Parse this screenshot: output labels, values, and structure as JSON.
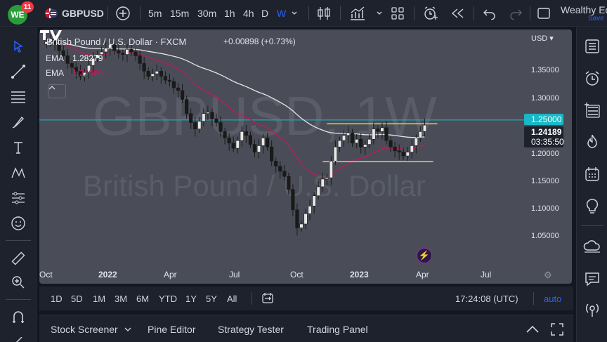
{
  "topbar": {
    "avatar_initials": "WE",
    "notifications": "11",
    "symbol": "GBPUSD",
    "intervals": [
      "5m",
      "15m",
      "30m",
      "1h",
      "4h",
      "D",
      "W"
    ],
    "active_interval": "W",
    "brand": "Wealthy Ed",
    "save": "Save"
  },
  "chart": {
    "legend_title": "British Pound / U.S. Dollar · FXCM",
    "legend_change": "+0.00898 (+0.73%)",
    "ema1_label": "EMA",
    "ema1_value": "1.28279",
    "ema2_label": "EMA",
    "ema2_value": "1.22080",
    "currency": "USD",
    "watermark_symbol": "GBPUSD, 1W",
    "watermark_name": "British Pound / U.S. Dollar",
    "price_ticks": [
      "1.35000",
      "1.30000",
      "1.20000",
      "1.15000",
      "1.10000",
      "1.05000"
    ],
    "badge_level": "1.25000",
    "badge_price": "1.24189",
    "badge_countdown": "03:35:50",
    "time_ticks": [
      "Oct",
      "2022",
      "Apr",
      "Jul",
      "Oct",
      "2023",
      "Apr",
      "Jul"
    ],
    "colors": {
      "bull": "#e8e8e8",
      "bear": "#1a1a1a",
      "ema_long": "#e6e6e6",
      "ema_short": "#c2185b",
      "support_resistance": "#e8e84a",
      "hline": "#18b8c8"
    }
  },
  "chart_data": {
    "type": "candlestick",
    "title": "British Pound / U.S. Dollar · FXCM",
    "timeframe": "1W",
    "ylim": [
      1.03,
      1.38
    ],
    "horizontal_line": 1.25,
    "resistance_level": 1.244,
    "support_level": 1.185,
    "last_price": 1.24189,
    "ema_long_last": 1.28279,
    "ema_short_last": 1.2208,
    "closes": [
      1.372,
      1.376,
      1.368,
      1.358,
      1.35,
      1.338,
      1.332,
      1.326,
      1.318,
      1.324,
      1.335,
      1.346,
      1.352,
      1.356,
      1.362,
      1.368,
      1.358,
      1.354,
      1.352,
      1.36,
      1.356,
      1.35,
      1.338,
      1.326,
      1.318,
      1.322,
      1.326,
      1.318,
      1.312,
      1.31,
      1.3,
      1.296,
      1.282,
      1.26,
      1.246,
      1.236,
      1.248,
      1.26,
      1.262,
      1.252,
      1.246,
      1.232,
      1.222,
      1.214,
      1.206,
      1.218,
      1.232,
      1.226,
      1.212,
      1.2,
      1.21,
      1.222,
      1.208,
      1.186,
      1.178,
      1.17,
      1.162,
      1.142,
      1.11,
      1.082,
      1.088,
      1.104,
      1.116,
      1.132,
      1.146,
      1.158,
      1.16,
      1.186,
      1.208,
      1.218,
      1.226,
      1.23,
      1.214,
      1.22,
      1.208,
      1.212,
      1.22,
      1.236,
      1.232,
      1.238,
      1.218,
      1.208,
      1.202,
      1.2,
      1.194,
      1.2,
      1.21,
      1.222,
      1.232,
      1.242
    ]
  },
  "rangebar": {
    "ranges": [
      "1D",
      "5D",
      "1M",
      "3M",
      "6M",
      "YTD",
      "1Y",
      "5Y",
      "All"
    ],
    "clock": "17:24:08 (UTC)",
    "auto": "auto"
  },
  "bottom_panel": {
    "tabs": [
      "Stock Screener",
      "Pine Editor",
      "Strategy Tester",
      "Trading Panel"
    ]
  }
}
